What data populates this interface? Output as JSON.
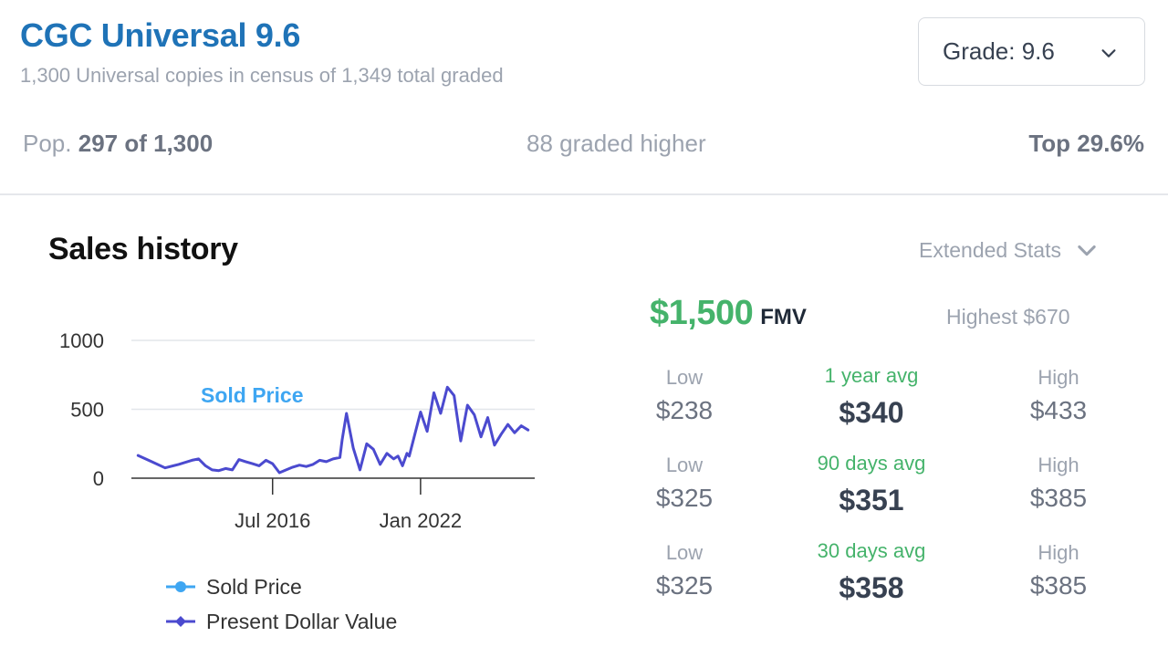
{
  "header": {
    "title": "CGC Universal 9.6",
    "subtitle": "1,300 Universal copies in census of 1,349 total graded"
  },
  "grade_select": {
    "label": "Grade: 9.6"
  },
  "population": {
    "pop_prefix": "Pop.",
    "pop_value": "297 of 1,300",
    "graded_higher": "88 graded higher",
    "top": "Top 29.6%"
  },
  "sales": {
    "title": "Sales history",
    "extended_stats": "Extended Stats"
  },
  "chart_data": {
    "type": "line",
    "y_ticks": [
      "1000",
      "500",
      "0"
    ],
    "x_ticks": [
      "Jul 2016",
      "Jan 2022"
    ],
    "ylim": [
      0,
      1000
    ],
    "annotation": "Sold Price",
    "series": [
      {
        "name": "Present Dollar Value",
        "color": "#4b4acf",
        "x": [
          "2011-07",
          "2012-01",
          "2012-07",
          "2013-01",
          "2013-07",
          "2013-10",
          "2014-01",
          "2014-04",
          "2014-07",
          "2014-10",
          "2015-01",
          "2015-04",
          "2015-07",
          "2015-10",
          "2016-01",
          "2016-04",
          "2016-07",
          "2016-10",
          "2017-01",
          "2017-04",
          "2017-07",
          "2017-10",
          "2018-01",
          "2018-04",
          "2018-07",
          "2018-10",
          "2019-01",
          "2019-02",
          "2019-04",
          "2019-07",
          "2019-10",
          "2020-01",
          "2020-04",
          "2020-07",
          "2020-10",
          "2021-01",
          "2021-03",
          "2021-05",
          "2021-07",
          "2021-08",
          "2021-10",
          "2022-01",
          "2022-04",
          "2022-07",
          "2022-10",
          "2023-01",
          "2023-04",
          "2023-07",
          "2023-10",
          "2024-01",
          "2024-04",
          "2024-07",
          "2024-10",
          "2025-01",
          "2025-04",
          "2025-07",
          "2025-10",
          "2026-01"
        ],
        "values": [
          165,
          120,
          75,
          100,
          130,
          140,
          90,
          60,
          55,
          70,
          60,
          135,
          120,
          105,
          90,
          130,
          105,
          40,
          60,
          80,
          95,
          85,
          100,
          130,
          120,
          140,
          150,
          280,
          470,
          220,
          60,
          250,
          210,
          100,
          180,
          140,
          160,
          90,
          180,
          160,
          290,
          480,
          340,
          620,
          470,
          660,
          600,
          270,
          530,
          460,
          300,
          440,
          240,
          320,
          390,
          330,
          380,
          350
        ]
      }
    ]
  },
  "stats": {
    "fmv_value": "$1,500",
    "fmv_unit": "FMV",
    "highest": "Highest $670",
    "rows": [
      {
        "low_label": "Low",
        "low": "$238",
        "avg_label": "1 year avg",
        "avg": "$340",
        "high_label": "High",
        "high": "$433"
      },
      {
        "low_label": "Low",
        "low": "$325",
        "avg_label": "90 days avg",
        "avg": "$351",
        "high_label": "High",
        "high": "$385"
      },
      {
        "low_label": "Low",
        "low": "$325",
        "avg_label": "30 days avg",
        "avg": "$358",
        "high_label": "High",
        "high": "$385"
      }
    ]
  },
  "legend": {
    "items": [
      {
        "label": "Sold Price",
        "color": "#3ea6f2"
      },
      {
        "label": "Present Dollar Value",
        "color": "#4b4acf"
      }
    ]
  },
  "icons": {
    "grade_chevron": "chevron-down-icon",
    "extended_chevron": "chevron-down-icon"
  }
}
